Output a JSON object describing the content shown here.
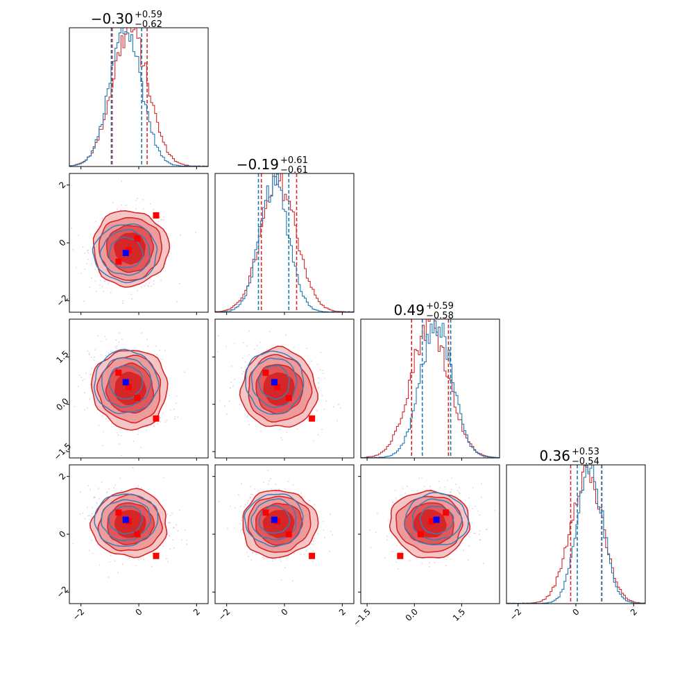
{
  "chart_data": {
    "type": "corner",
    "parameters": 4,
    "titles": [
      {
        "median": "−0.30",
        "plus": "+0.59",
        "minus": "−0.62"
      },
      {
        "median": "−0.19",
        "plus": "+0.61",
        "minus": "−0.61"
      },
      {
        "median": "0.49",
        "plus": "+0.59",
        "minus": "−0.58"
      },
      {
        "median": "0.36",
        "plus": "+0.53",
        "minus": "−0.54"
      }
    ],
    "axes": [
      {
        "range": [
          -2.4,
          2.4
        ],
        "ticks": [
          -2,
          0,
          2
        ],
        "tick_labels": [
          "−2",
          "0",
          "2"
        ]
      },
      {
        "range": [
          -2.4,
          2.4
        ],
        "ticks": [
          -2,
          0,
          2
        ],
        "tick_labels": [
          "−2",
          "0",
          "2"
        ]
      },
      {
        "range": [
          -1.7,
          2.7
        ],
        "ticks": [
          -1.5,
          0.0,
          1.5
        ],
        "tick_labels": [
          "−1.5",
          "0.0",
          "1.5"
        ]
      },
      {
        "range": [
          -2.4,
          2.4
        ],
        "ticks": [
          -2,
          0,
          2
        ],
        "tick_labels": [
          "−2",
          "0",
          "2"
        ]
      }
    ],
    "series": [
      {
        "color": "#1f77b4",
        "mean": [
          -0.45,
          -0.35,
          0.7,
          0.5
        ],
        "std": [
          0.55,
          0.5,
          0.5,
          0.45
        ],
        "quantiles": [
          [
            -0.95,
            0.1
          ],
          [
            -0.9,
            0.15
          ],
          [
            0.25,
            1.15
          ],
          [
            0.05,
            0.9
          ]
        ]
      },
      {
        "color": "#d62728",
        "mean": [
          -0.3,
          -0.19,
          0.49,
          0.36
        ],
        "std": [
          0.62,
          0.62,
          0.6,
          0.55
        ],
        "quantiles": [
          [
            -0.92,
            0.29
          ],
          [
            -0.8,
            0.42
          ],
          [
            -0.09,
            1.08
          ],
          [
            -0.18,
            0.89
          ]
        ]
      }
    ],
    "markers": {
      "blue": [
        -0.45,
        -0.35,
        0.7,
        0.5
      ],
      "red": [
        [
          -0.7,
          -0.65,
          1.0,
          0.75
        ],
        [
          -0.35,
          -0.25,
          0.55,
          0.45
        ],
        [
          -0.05,
          0.15,
          0.2,
          0.0
        ],
        [
          0.6,
          0.95,
          -0.45,
          -0.75
        ]
      ]
    },
    "marker_colors": {
      "blue": "#0000ff",
      "red": "#ff0000"
    }
  }
}
